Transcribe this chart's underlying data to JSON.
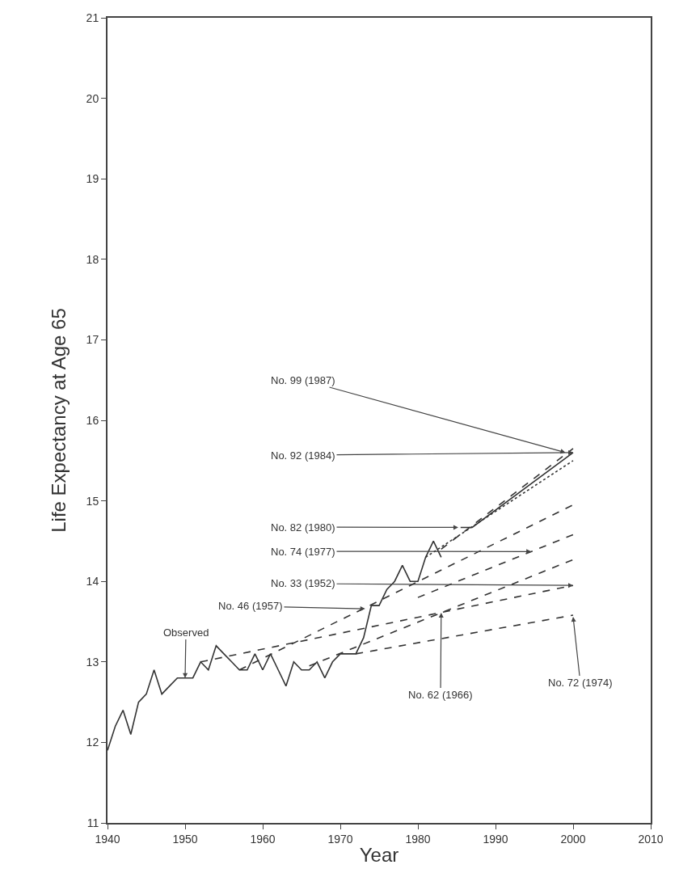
{
  "chart_data": {
    "type": "line",
    "xlabel": "Year",
    "ylabel": "Life Expectancy at Age 65",
    "xlim": [
      1940,
      2010
    ],
    "xticks": [
      1940,
      1950,
      1960,
      1970,
      1980,
      1990,
      2000,
      2010
    ],
    "ylim": [
      11,
      21
    ],
    "yticks": [
      11,
      12,
      13,
      14,
      15,
      16,
      17,
      18,
      19,
      20,
      21
    ],
    "grid": false,
    "marker": "none",
    "series": [
      {
        "color": "#333333",
        "line_style": "solid",
        "x": [
          1940,
          1941,
          1942,
          1943,
          1944,
          1945,
          1946,
          1947,
          1948,
          1949,
          1950,
          1951,
          1952,
          1953,
          1954,
          1955,
          1956,
          1957,
          1958,
          1959,
          1960,
          1961,
          1962,
          1963,
          1964,
          1965,
          1966,
          1967,
          1968,
          1969,
          1970,
          1971,
          1972,
          1973,
          1974,
          1975,
          1976,
          1977,
          1978,
          1979,
          1980,
          1981,
          1982,
          1983
        ],
        "values": [
          11.9,
          12.2,
          12.4,
          12.1,
          12.5,
          12.6,
          12.9,
          12.6,
          12.7,
          12.8,
          12.8,
          12.8,
          13.0,
          12.9,
          13.2,
          13.1,
          13.0,
          12.9,
          12.9,
          13.1,
          12.9,
          13.1,
          12.9,
          12.7,
          13.0,
          12.9,
          12.9,
          13.0,
          12.8,
          13.0,
          13.1,
          13.1,
          13.1,
          13.3,
          13.7,
          13.7,
          13.9,
          14.0,
          14.2,
          14.0,
          14.0,
          14.3,
          14.5,
          14.3
        ]
      },
      {
        "color": "#333333",
        "line_style": "dashed",
        "x": [
          1952,
          2000
        ],
        "values": [
          13.0,
          13.95
        ]
      },
      {
        "color": "#333333",
        "line_style": "dashed",
        "x": [
          1957,
          2000
        ],
        "values": [
          12.9,
          14.95
        ]
      },
      {
        "color": "#333333",
        "line_style": "dashed",
        "x": [
          1966,
          2000
        ],
        "values": [
          12.95,
          14.27
        ]
      },
      {
        "color": "#333333",
        "line_style": "dashed",
        "x": [
          1972,
          2000
        ],
        "values": [
          13.1,
          13.58
        ]
      },
      {
        "color": "#333333",
        "line_style": "dashed",
        "x": [
          1980,
          2000
        ],
        "values": [
          13.8,
          14.58
        ]
      },
      {
        "color": "#333333",
        "line_style": "dotted",
        "x": [
          1981,
          2000
        ],
        "values": [
          14.3,
          15.5
        ]
      },
      {
        "color": "#333333",
        "line_style": "solid",
        "x": [
          1985.5,
          1987,
          2000
        ],
        "values": [
          14.67,
          14.67,
          15.6
        ]
      },
      {
        "color": "#333333",
        "line_style": "dashed",
        "x": [
          1983,
          2000
        ],
        "values": [
          14.4,
          15.65
        ]
      }
    ],
    "annotations": [
      {
        "text": "No. 99 (1987)",
        "x": 1999,
        "y": 15.6
      },
      {
        "text": "No. 92 (1984)",
        "x": 2000,
        "y": 15.6
      },
      {
        "text": "No. 82 (1980)",
        "x": 1985.2,
        "y": 14.67
      },
      {
        "text": "No. 74 (1977)",
        "x": 1994.6,
        "y": 14.37
      },
      {
        "text": "No. 33 (1952)",
        "x": 2000,
        "y": 13.95
      },
      {
        "text": "No. 46 (1957)",
        "x": 1973.2,
        "y": 13.66
      },
      {
        "text": "Observed",
        "x": 1950,
        "y": 12.8
      },
      {
        "text": "No. 62 (1966)",
        "x": 1983,
        "y": 13.61
      },
      {
        "text": "No. 72 (1974)",
        "x": 2000,
        "y": 13.56
      }
    ]
  }
}
